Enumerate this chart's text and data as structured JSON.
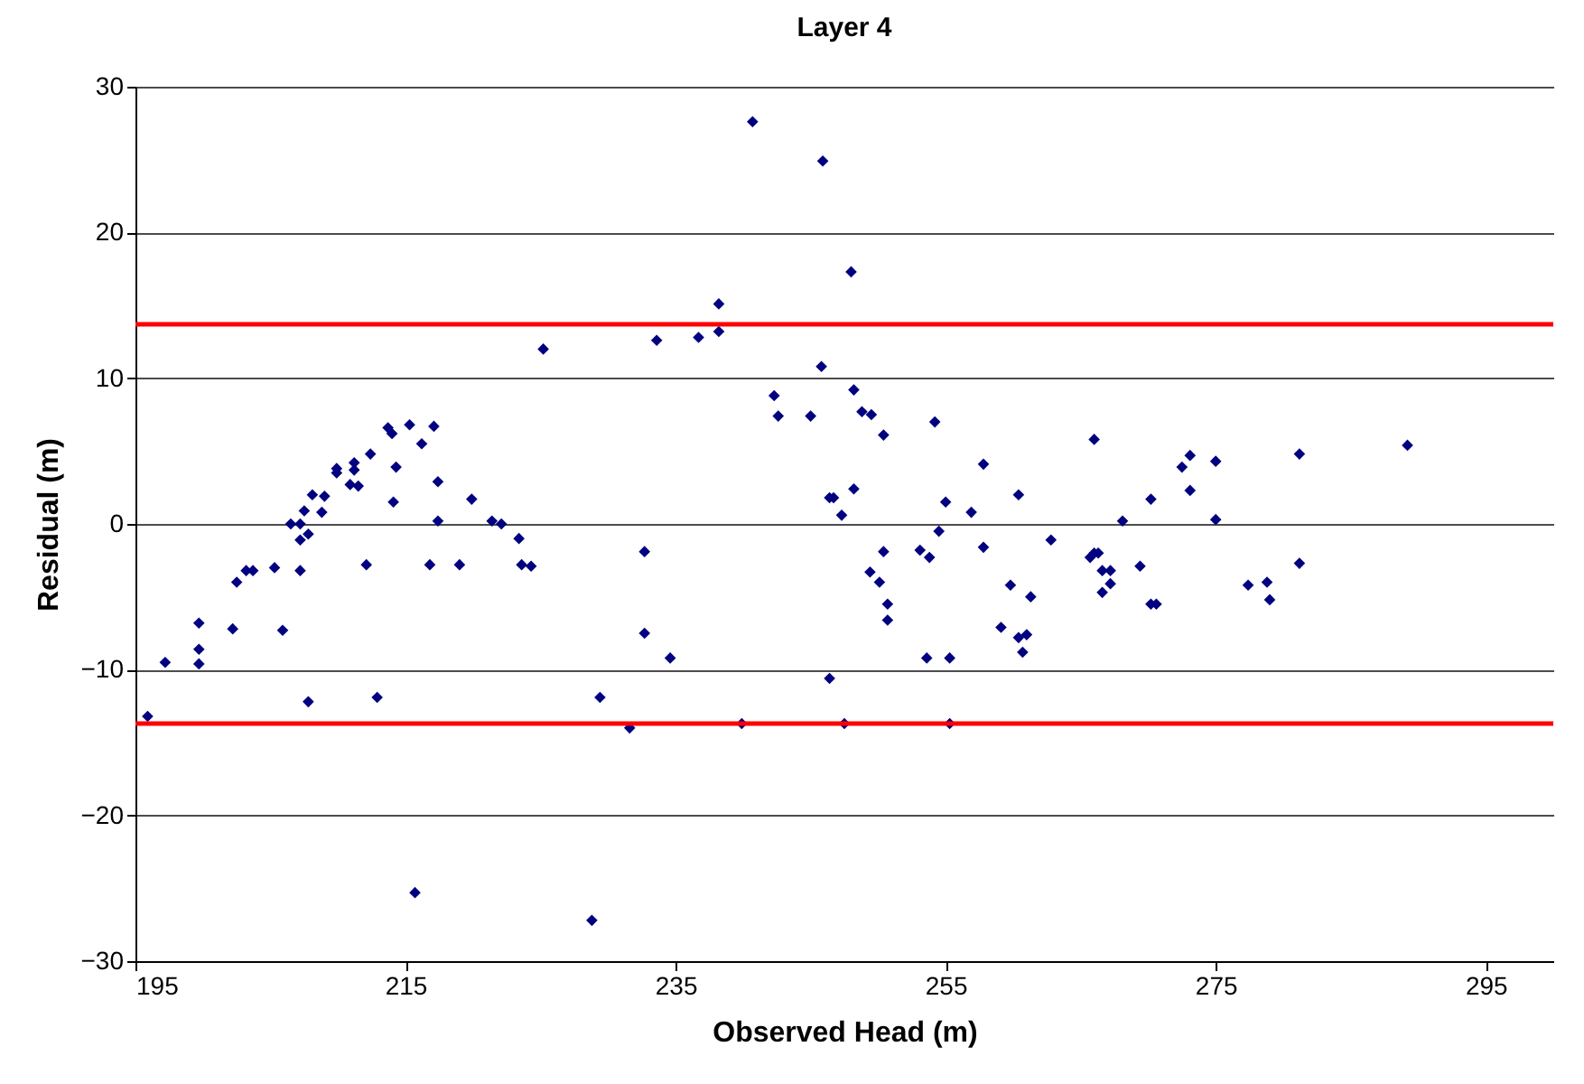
{
  "chart_data": {
    "type": "scatter",
    "title": "Layer 4",
    "xlabel": "Observed Head (m)",
    "ylabel": "Residual (m)",
    "x": [
      195.9,
      197.2,
      199.7,
      199.7,
      199.7,
      202.2,
      202.5,
      203.2,
      203.7,
      205.3,
      205.9,
      206.5,
      207.2,
      207.2,
      207.2,
      207.8,
      207.5,
      208.1,
      208.8,
      209,
      209.9,
      209.9,
      210.9,
      211.2,
      211.2,
      211.5,
      212.1,
      212.4,
      213.7,
      214,
      214.3,
      214.1,
      215.3,
      216.2,
      217.1,
      217.4,
      217.4,
      216.8,
      219,
      207.8,
      212.9,
      219.9,
      221.4,
      222.1,
      223.4,
      223.6,
      224.3,
      225.2,
      232.7,
      232.7,
      234.6,
      233.6,
      236.7,
      238.2,
      238.2,
      229.4,
      245.8,
      242.3,
      242.6,
      245,
      248.2,
      248.8,
      249.5,
      250.4,
      254.2,
      257.8,
      260.4,
      246.4,
      246.7,
      248.2,
      247.3,
      255,
      256.9,
      254.5,
      250.4,
      253.1,
      253.8,
      257.8,
      249.4,
      250.1,
      250.7,
      250.7,
      259.8,
      261.3,
      259.1,
      260.4,
      261,
      260.7,
      253.6,
      255.3,
      246.4,
      266,
      262.8,
      265.7,
      266,
      266.3,
      266.6,
      267.2,
      267.2,
      266.6,
      268.1,
      269.4,
      270.2,
      270.2,
      270.6,
      272.5,
      273.1,
      273.1,
      275,
      275,
      277.4,
      278.8,
      279,
      281.2,
      281.2,
      289.2,
      240.7,
      245.9,
      248,
      231.6,
      239.9,
      247.5,
      255.3,
      215.7,
      228.8
    ],
    "series": [
      {
        "color": "#000080",
        "values": [
          -13.2,
          -9.5,
          -6.8,
          -8.6,
          -9.6,
          -7.2,
          -4.0,
          -3.2,
          -3.2,
          -3.0,
          -7.3,
          0.0,
          0.0,
          -3.2,
          -1.1,
          -0.7,
          0.9,
          2.0,
          0.8,
          1.9,
          3.8,
          3.5,
          2.7,
          4.2,
          3.7,
          2.6,
          -2.8,
          4.8,
          6.6,
          6.2,
          3.9,
          1.5,
          6.8,
          5.5,
          6.7,
          2.9,
          0.2,
          -2.8,
          -2.8,
          -12.2,
          -11.9,
          1.7,
          0.2,
          0.0,
          -1.0,
          -2.8,
          -2.9,
          12.0,
          -1.9,
          -7.5,
          -9.2,
          12.6,
          12.8,
          15.1,
          13.2,
          -11.9,
          10.8,
          8.8,
          7.4,
          7.4,
          9.2,
          7.7,
          7.5,
          6.1,
          7.0,
          4.1,
          2.0,
          1.8,
          1.8,
          2.4,
          0.6,
          1.5,
          0.8,
          -0.5,
          -1.9,
          -1.8,
          -2.3,
          -1.6,
          -3.3,
          -4.0,
          -5.5,
          -6.6,
          -4.2,
          -5.0,
          -7.1,
          -7.8,
          -7.6,
          -8.8,
          -9.2,
          -9.2,
          -10.6,
          5.8,
          -1.1,
          -2.3,
          -2.0,
          -2.0,
          -3.2,
          -3.2,
          -4.1,
          -4.7,
          0.2,
          -2.9,
          1.7,
          -5.5,
          -5.5,
          3.9,
          4.7,
          2.3,
          4.3,
          0.3,
          -4.2,
          -4.0,
          -5.2,
          4.8,
          -2.7,
          5.4,
          27.6,
          24.9,
          17.3,
          -14.0,
          -13.7,
          -13.7,
          -13.7,
          -25.3,
          -27.2
        ]
      }
    ],
    "xlim": [
      195,
      300
    ],
    "xticks": [
      195,
      215,
      235,
      255,
      275,
      295
    ],
    "ylim": [
      -30,
      30
    ],
    "yticks": [
      -30,
      -20,
      -10,
      0,
      10,
      20,
      30
    ],
    "grid": "y",
    "marker": "diamond",
    "ref_lines": [
      {
        "axis": "y",
        "value": 13.7,
        "color": "#ff0000"
      },
      {
        "axis": "y",
        "value": -13.7,
        "color": "#ff0000"
      }
    ]
  }
}
